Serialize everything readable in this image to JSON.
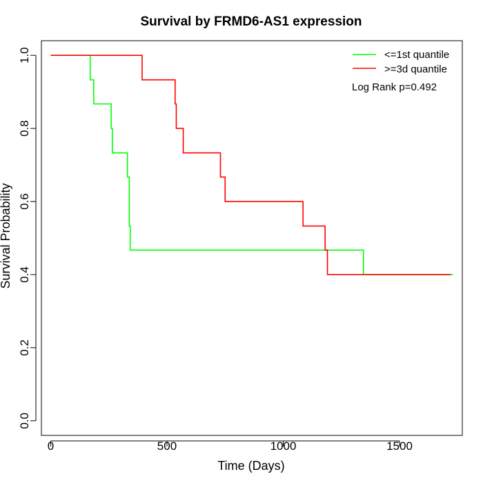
{
  "chart_data": {
    "type": "line",
    "title": "Survival by FRMD6-AS1 expression",
    "xlabel": "Time (Days)",
    "ylabel": "Survival Probability",
    "xlim": [
      -40,
      1770
    ],
    "ylim": [
      -0.04,
      1.04
    ],
    "x_ticks": [
      0,
      500,
      1000,
      1500
    ],
    "x_tick_labels": [
      "0",
      "500",
      "1000",
      "1500"
    ],
    "y_ticks": [
      0.0,
      0.2,
      0.4,
      0.6,
      0.8,
      1.0
    ],
    "y_tick_labels": [
      "0.0",
      "0.2",
      "0.4",
      "0.6",
      "0.8",
      "1.0"
    ],
    "grid": false,
    "legend_position": "top-right",
    "annotation": "Log Rank p=0.492",
    "series": [
      {
        "name": "<=1st quantile",
        "color": "#00ff00",
        "step": true,
        "x": [
          0,
          170,
          185,
          260,
          265,
          330,
          338,
          342,
          348,
          1345,
          1730
        ],
        "y": [
          1.0,
          0.933,
          0.867,
          0.8,
          0.733,
          0.667,
          0.533,
          0.467,
          0.467,
          0.4,
          0.4
        ]
      },
      {
        "name": ">=3d quantile",
        "color": "#ff0000",
        "step": true,
        "x": [
          0,
          393,
          535,
          540,
          570,
          730,
          750,
          1085,
          1180,
          1190,
          1720
        ],
        "y": [
          1.0,
          0.933,
          0.867,
          0.8,
          0.733,
          0.667,
          0.6,
          0.533,
          0.467,
          0.4,
          0.4
        ]
      }
    ]
  }
}
